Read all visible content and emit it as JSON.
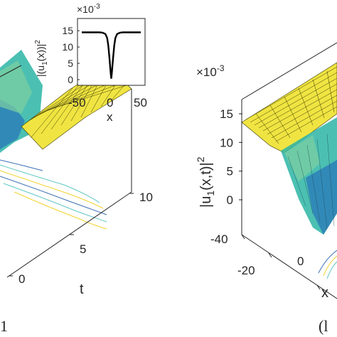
{
  "chart_data": [
    {
      "type": "surface",
      "panel_label": "1",
      "axes": {
        "t": {
          "label": "t",
          "ticks": [
            "0",
            "5",
            "10"
          ]
        }
      },
      "inset": {
        "type": "line",
        "xlabel": "x",
        "ylabel": "|(u1(x))|^2",
        "ylabel_parts": {
          "pre": "|(u",
          "sub": "1",
          "mid": "(x))|",
          "sup": "2"
        },
        "multiplier": "×10",
        "multiplier_exp": "-3",
        "xticks": [
          "-50",
          "0",
          "50"
        ],
        "yticks": [
          "0",
          "5",
          "10",
          "15"
        ],
        "xlim": [
          -50,
          50
        ],
        "ylim": [
          0,
          17
        ],
        "x": [
          -50,
          -40,
          -30,
          -20,
          -15,
          -10,
          -7,
          -5,
          -3,
          -1,
          0,
          1,
          3,
          5,
          7,
          10,
          15,
          20,
          30,
          40,
          50
        ],
        "y": [
          14.5,
          14.5,
          14.5,
          14.5,
          14.4,
          14.0,
          12.8,
          10.5,
          6.5,
          2.0,
          0.3,
          2.0,
          6.5,
          10.5,
          12.8,
          14.0,
          14.4,
          14.5,
          14.5,
          14.5,
          14.5
        ]
      }
    },
    {
      "type": "surface",
      "panel_label": "(l",
      "zlabel": "|u1(x,t)|^2",
      "zlabel_parts": {
        "pre": "|u",
        "sub": "1",
        "mid": "(x,t)|",
        "sup": "2"
      },
      "multiplier": "×10",
      "multiplier_exp": "-3",
      "zticks": [
        "0",
        "5",
        "10",
        "15"
      ],
      "xticks": [
        "-40",
        "-20",
        "0"
      ],
      "xlabel": "x",
      "plateau_level": 14.5
    }
  ],
  "colors": {
    "surface_top": "#f0e442",
    "surface_mesh": "#3a3a00",
    "dip_teal": "#2cb5a5",
    "dip_blue": "#2a7ab8",
    "dip_cyan": "#60c8c0",
    "contour_yellow": "#f2d22e",
    "contour_cyan": "#5ec7c4",
    "contour_blue": "#3b6fb5",
    "axis": "#262626"
  }
}
